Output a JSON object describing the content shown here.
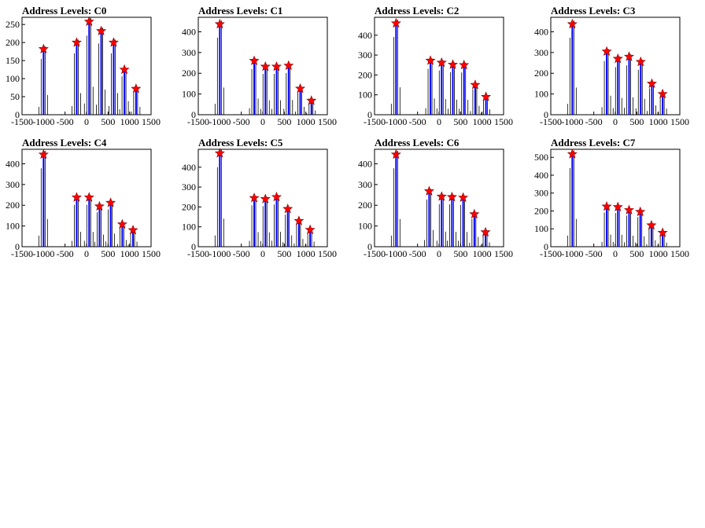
{
  "colors": {
    "peak": "#0000ff",
    "marker": "#ff0000",
    "noise": "#000000"
  },
  "x_axis": {
    "ticks": [
      -1500,
      -1000,
      -500,
      0,
      500,
      1000,
      1500
    ],
    "tick_labels": [
      "-1500",
      "-1000",
      "-500",
      "0",
      "500",
      "1000",
      "1500"
    ]
  },
  "chart_data": [
    {
      "type": "bar",
      "title": "Address Levels: C0",
      "xlim": [
        -1500,
        1500
      ],
      "ylim": [
        0,
        270
      ],
      "yticks": [
        0,
        50,
        100,
        150,
        200,
        250
      ],
      "peaks": [
        {
          "x": -1000,
          "y": 182
        },
        {
          "x": -230,
          "y": 200
        },
        {
          "x": 60,
          "y": 258
        },
        {
          "x": 340,
          "y": 232
        },
        {
          "x": 630,
          "y": 200
        },
        {
          "x": 880,
          "y": 125
        },
        {
          "x": 1150,
          "y": 72
        }
      ]
    },
    {
      "type": "bar",
      "title": "Address Levels: C1",
      "xlim": [
        -1500,
        1500
      ],
      "ylim": [
        0,
        470
      ],
      "yticks": [
        0,
        100,
        200,
        300,
        400
      ],
      "peaks": [
        {
          "x": -1000,
          "y": 437
        },
        {
          "x": -200,
          "y": 260
        },
        {
          "x": 60,
          "y": 232
        },
        {
          "x": 320,
          "y": 232
        },
        {
          "x": 600,
          "y": 237
        },
        {
          "x": 870,
          "y": 126
        },
        {
          "x": 1130,
          "y": 68
        }
      ]
    },
    {
      "type": "bar",
      "title": "Address Levels: C2",
      "xlim": [
        -1500,
        1500
      ],
      "ylim": [
        0,
        490
      ],
      "yticks": [
        0,
        100,
        200,
        300,
        400
      ],
      "peaks": [
        {
          "x": -1000,
          "y": 460
        },
        {
          "x": -200,
          "y": 272
        },
        {
          "x": 60,
          "y": 262
        },
        {
          "x": 320,
          "y": 252
        },
        {
          "x": 580,
          "y": 250
        },
        {
          "x": 840,
          "y": 150
        },
        {
          "x": 1090,
          "y": 90
        }
      ]
    },
    {
      "type": "bar",
      "title": "Address Levels: C3",
      "xlim": [
        -1500,
        1500
      ],
      "ylim": [
        0,
        470
      ],
      "yticks": [
        0,
        100,
        200,
        300,
        400
      ],
      "peaks": [
        {
          "x": -1000,
          "y": 437
        },
        {
          "x": -200,
          "y": 305
        },
        {
          "x": 60,
          "y": 270
        },
        {
          "x": 320,
          "y": 280
        },
        {
          "x": 590,
          "y": 255
        },
        {
          "x": 850,
          "y": 150
        },
        {
          "x": 1100,
          "y": 100
        }
      ]
    },
    {
      "type": "bar",
      "title": "Address Levels: C4",
      "xlim": [
        -1500,
        1500
      ],
      "ylim": [
        0,
        470
      ],
      "yticks": [
        0,
        100,
        200,
        300,
        400
      ],
      "peaks": [
        {
          "x": -1000,
          "y": 445
        },
        {
          "x": -230,
          "y": 238
        },
        {
          "x": 60,
          "y": 238
        },
        {
          "x": 300,
          "y": 195
        },
        {
          "x": 560,
          "y": 212
        },
        {
          "x": 830,
          "y": 108
        },
        {
          "x": 1080,
          "y": 80
        }
      ]
    },
    {
      "type": "bar",
      "title": "Address Levels: C5",
      "xlim": [
        -1500,
        1500
      ],
      "ylim": [
        0,
        490
      ],
      "yticks": [
        0,
        100,
        200,
        300,
        400
      ],
      "peaks": [
        {
          "x": -1000,
          "y": 470
        },
        {
          "x": -200,
          "y": 245
        },
        {
          "x": 60,
          "y": 240
        },
        {
          "x": 320,
          "y": 250
        },
        {
          "x": 580,
          "y": 190
        },
        {
          "x": 840,
          "y": 130
        },
        {
          "x": 1100,
          "y": 85
        }
      ]
    },
    {
      "type": "bar",
      "title": "Address Levels: C6",
      "xlim": [
        -1500,
        1500
      ],
      "ylim": [
        0,
        470
      ],
      "yticks": [
        0,
        100,
        200,
        300,
        400
      ],
      "peaks": [
        {
          "x": -1000,
          "y": 445
        },
        {
          "x": -230,
          "y": 268
        },
        {
          "x": 60,
          "y": 242
        },
        {
          "x": 300,
          "y": 240
        },
        {
          "x": 560,
          "y": 237
        },
        {
          "x": 820,
          "y": 157
        },
        {
          "x": 1080,
          "y": 70
        }
      ]
    },
    {
      "type": "bar",
      "title": "Address Levels: C7",
      "xlim": [
        -1500,
        1500
      ],
      "ylim": [
        0,
        545
      ],
      "yticks": [
        0,
        100,
        200,
        300,
        400,
        500
      ],
      "peaks": [
        {
          "x": -1000,
          "y": 518
        },
        {
          "x": -200,
          "y": 225
        },
        {
          "x": 60,
          "y": 222
        },
        {
          "x": 320,
          "y": 205
        },
        {
          "x": 580,
          "y": 195
        },
        {
          "x": 840,
          "y": 120
        },
        {
          "x": 1100,
          "y": 78
        }
      ]
    }
  ]
}
